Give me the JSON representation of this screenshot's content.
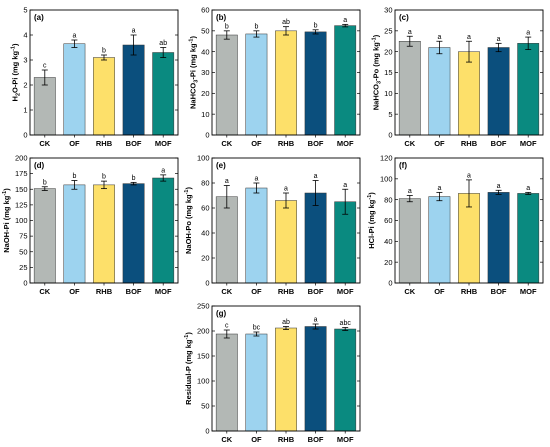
{
  "categories": [
    "CK",
    "OF",
    "RHB",
    "BOF",
    "MOF"
  ],
  "colors": [
    "#b3b8b5",
    "#9dd3ef",
    "#fde06a",
    "#0b4f7d",
    "#0a8a80"
  ],
  "chart_data": [
    {
      "type": "bar",
      "panel": "(a)",
      "ylabel": "H2O-Pi (mg kg-1)",
      "ylim": [
        0,
        5
      ],
      "yticks": [
        0,
        1,
        2,
        3,
        4,
        5
      ],
      "values": [
        2.3,
        3.65,
        3.1,
        3.6,
        3.3
      ],
      "errors": [
        0.3,
        0.15,
        0.1,
        0.4,
        0.2
      ],
      "letters": [
        "c",
        "a",
        "b",
        "a",
        "ab"
      ]
    },
    {
      "type": "bar",
      "panel": "(b)",
      "ylabel": "NaHCO3-Pi (mg kg-1)",
      "ylim": [
        0,
        60
      ],
      "yticks": [
        0,
        10,
        20,
        30,
        40,
        50,
        60
      ],
      "values": [
        48,
        48.5,
        50,
        49.5,
        52.5
      ],
      "errors": [
        2,
        1.5,
        2,
        1,
        0.6
      ],
      "letters": [
        "b",
        "b",
        "ab",
        "b",
        "a"
      ]
    },
    {
      "type": "bar",
      "panel": "(c)",
      "ylabel": "NaHCO3-Po (mg kg-1)",
      "ylim": [
        0,
        30
      ],
      "yticks": [
        0,
        5,
        10,
        15,
        20,
        25,
        30
      ],
      "values": [
        22.5,
        21,
        20,
        21,
        22
      ],
      "errors": [
        1.2,
        1.5,
        2.5,
        1,
        1.5
      ],
      "letters": [
        "a",
        "a",
        "a",
        "a",
        "a"
      ]
    },
    {
      "type": "bar",
      "panel": "(d)",
      "ylabel": "NaOH-Pi (mg kg-1)",
      "ylim": [
        0,
        200
      ],
      "yticks": [
        0,
        25,
        50,
        75,
        100,
        125,
        150,
        175,
        200
      ],
      "values": [
        151,
        157,
        157,
        159,
        168
      ],
      "errors": [
        3,
        7,
        6,
        2,
        5
      ],
      "letters": [
        "b",
        "b",
        "b",
        "b",
        "a"
      ]
    },
    {
      "type": "bar",
      "panel": "(e)",
      "ylabel": "NaOH-Po (mg kg-1)",
      "ylim": [
        0,
        100
      ],
      "yticks": [
        0,
        20,
        40,
        60,
        80,
        100
      ],
      "values": [
        69,
        76,
        66,
        72,
        65
      ],
      "errors": [
        9,
        4,
        6,
        10,
        10
      ],
      "letters": [
        "a",
        "a",
        "a",
        "a",
        "a"
      ]
    },
    {
      "type": "bar",
      "panel": "(f)",
      "ylabel": "HCl-Pi (mg kg-1)",
      "ylim": [
        0,
        120
      ],
      "yticks": [
        0,
        20,
        40,
        60,
        80,
        100,
        120
      ],
      "values": [
        81,
        83,
        86,
        87,
        86
      ],
      "errors": [
        3,
        4,
        13,
        2,
        1
      ],
      "letters": [
        "a",
        "a",
        "a",
        "a",
        "a"
      ]
    },
    {
      "type": "bar",
      "panel": "(g)",
      "ylabel": "Residual-P (mg kg-1)",
      "ylim": [
        0,
        250
      ],
      "yticks": [
        0,
        50,
        100,
        150,
        200,
        250
      ],
      "values": [
        194,
        194,
        206,
        209,
        204
      ],
      "errors": [
        8,
        4,
        3,
        5,
        3
      ],
      "letters": [
        "c",
        "bc",
        "ab",
        "a",
        "abc"
      ]
    }
  ]
}
